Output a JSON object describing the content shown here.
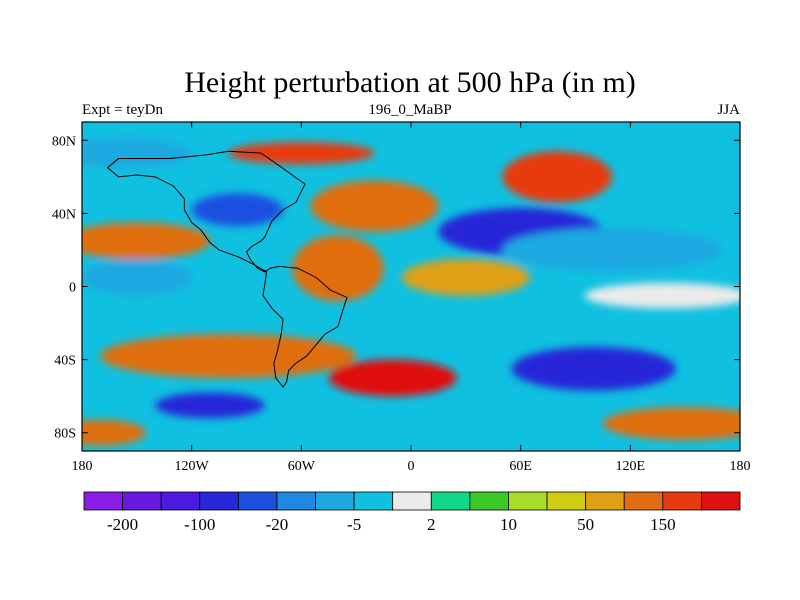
{
  "chart_data": {
    "type": "heatmap",
    "title": "Height perturbation at 500 hPa (in m)",
    "subtitle_left": "Expt = teyDn",
    "subtitle_center": "196_0_MaBP",
    "subtitle_right": "JJA",
    "x_ticks": [
      "180",
      "120W",
      "60W",
      "0",
      "60E",
      "120E",
      "180"
    ],
    "y_ticks": [
      "80N",
      "40N",
      "0",
      "40S",
      "80S"
    ],
    "xlim": [
      -180,
      180
    ],
    "ylim": [
      -90,
      90
    ],
    "colorbar": {
      "labels": [
        "-200",
        "-100",
        "-20",
        "-5",
        "2",
        "10",
        "50",
        "150"
      ],
      "label_boundary_index": [
        1,
        3,
        5,
        7,
        9,
        11,
        13,
        15
      ],
      "levels": [
        -300,
        -200,
        -150,
        -100,
        -50,
        -20,
        -10,
        -5,
        -2,
        2,
        5,
        10,
        20,
        50,
        100,
        150
      ],
      "colors": [
        "#8a1de8",
        "#6a1ae0",
        "#4a1ae0",
        "#2828d8",
        "#1e50e0",
        "#2088e0",
        "#1ea8e0",
        "#10c0e0",
        "#ebebeb",
        "#10d888",
        "#3cc828",
        "#a8dc28",
        "#d0cc14",
        "#e0a014",
        "#e06e10",
        "#e83a10",
        "#e01010"
      ]
    },
    "field": [
      {
        "lon": -155,
        "lat": 73,
        "value": -20,
        "rx": 35,
        "ry": 8
      },
      {
        "lon": -60,
        "lat": 73,
        "value": 100,
        "rx": 40,
        "ry": 6
      },
      {
        "lon": 80,
        "lat": 60,
        "value": 100,
        "rx": 30,
        "ry": 14
      },
      {
        "lon": -20,
        "lat": 44,
        "value": 60,
        "rx": 35,
        "ry": 14
      },
      {
        "lon": -95,
        "lat": 42,
        "value": -100,
        "rx": 25,
        "ry": 9
      },
      {
        "lon": 60,
        "lat": 30,
        "value": -150,
        "rx": 45,
        "ry": 13
      },
      {
        "lon": 110,
        "lat": 20,
        "value": -20,
        "rx": 60,
        "ry": 12
      },
      {
        "lon": -150,
        "lat": 25,
        "value": 60,
        "rx": 40,
        "ry": 10
      },
      {
        "lon": -150,
        "lat": 5,
        "value": -20,
        "rx": 30,
        "ry": 10
      },
      {
        "lon": -40,
        "lat": 10,
        "value": 50,
        "rx": 25,
        "ry": 18
      },
      {
        "lon": 30,
        "lat": 5,
        "value": 30,
        "rx": 35,
        "ry": 10
      },
      {
        "lon": 140,
        "lat": -5,
        "value": -5,
        "rx": 45,
        "ry": 7
      },
      {
        "lon": -100,
        "lat": -38,
        "value": 50,
        "rx": 70,
        "ry": 12
      },
      {
        "lon": -10,
        "lat": -50,
        "value": 150,
        "rx": 35,
        "ry": 10
      },
      {
        "lon": 100,
        "lat": -45,
        "value": -150,
        "rx": 45,
        "ry": 12
      },
      {
        "lon": -110,
        "lat": -65,
        "value": -150,
        "rx": 30,
        "ry": 7
      },
      {
        "lon": 150,
        "lat": -75,
        "value": 50,
        "rx": 45,
        "ry": 9
      },
      {
        "lon": -170,
        "lat": -80,
        "value": 50,
        "rx": 25,
        "ry": 7
      }
    ],
    "coastline_lonlat": [
      [
        -132,
        70
      ],
      [
        -112,
        72
      ],
      [
        -100,
        74
      ],
      [
        -82,
        73
      ],
      [
        -72,
        66
      ],
      [
        -58,
        56
      ],
      [
        -63,
        46
      ],
      [
        -70,
        42
      ],
      [
        -76,
        36
      ],
      [
        -80,
        27
      ],
      [
        -82,
        25
      ],
      [
        -87,
        22
      ],
      [
        -90,
        19
      ],
      [
        -88,
        15
      ],
      [
        -84,
        10
      ],
      [
        -80,
        8
      ],
      [
        -77,
        10
      ],
      [
        -72,
        11
      ],
      [
        -62,
        10
      ],
      [
        -52,
        5
      ],
      [
        -44,
        -2
      ],
      [
        -35,
        -6
      ],
      [
        -37,
        -12
      ],
      [
        -40,
        -22
      ],
      [
        -47,
        -26
      ],
      [
        -52,
        -32
      ],
      [
        -57,
        -38
      ],
      [
        -63,
        -42
      ],
      [
        -67,
        -46
      ],
      [
        -68,
        -52
      ],
      [
        -70,
        -55
      ],
      [
        -74,
        -50
      ],
      [
        -75,
        -42
      ],
      [
        -73,
        -35
      ],
      [
        -71,
        -26
      ],
      [
        -70,
        -18
      ],
      [
        -76,
        -12
      ],
      [
        -81,
        -5
      ],
      [
        -80,
        1
      ],
      [
        -79,
        8
      ],
      [
        -86,
        12
      ],
      [
        -94,
        16
      ],
      [
        -105,
        20
      ],
      [
        -110,
        24
      ],
      [
        -115,
        31
      ],
      [
        -120,
        35
      ],
      [
        -124,
        42
      ],
      [
        -124,
        48
      ],
      [
        -130,
        55
      ],
      [
        -140,
        60
      ],
      [
        -150,
        61
      ],
      [
        -160,
        60
      ],
      [
        -166,
        65
      ],
      [
        -160,
        70
      ],
      [
        -145,
        70
      ],
      [
        -132,
        70
      ]
    ]
  }
}
